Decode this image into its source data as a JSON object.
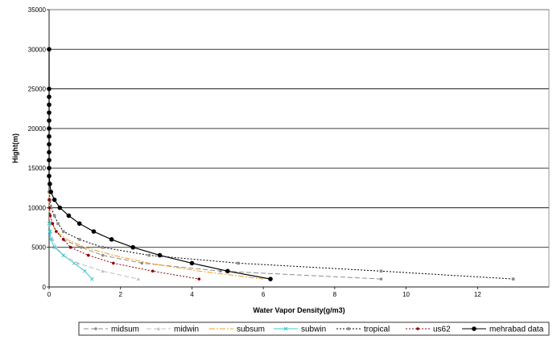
{
  "chart_data": {
    "type": "line",
    "title": "",
    "xlabel": "Water Vapor Density(g/m3)",
    "ylabel": "Hight(m)",
    "xlim": [
      0,
      14
    ],
    "ylim": [
      0,
      35000
    ],
    "xticks": [
      0,
      2,
      4,
      6,
      8,
      10,
      12
    ],
    "yticks": [
      0,
      5000,
      10000,
      15000,
      20000,
      25000,
      30000,
      35000
    ],
    "grid": "horizontal",
    "legend_position": "bottom",
    "series": [
      {
        "name": "midsum",
        "color": "#8c8c8c",
        "dash": "6,3",
        "marker": "circle",
        "points": [
          [
            0.0,
            12000
          ],
          [
            0.003,
            11000
          ],
          [
            0.01,
            10000
          ],
          [
            0.03,
            9000
          ],
          [
            0.07,
            8000
          ],
          [
            0.2,
            7000
          ],
          [
            0.4,
            6000
          ],
          [
            0.9,
            5000
          ],
          [
            1.5,
            4000
          ],
          [
            2.6,
            3000
          ],
          [
            4.8,
            2000
          ],
          [
            9.3,
            1000
          ]
        ]
      },
      {
        "name": "midwin",
        "color": "#c0c0c0",
        "dash": "6,3",
        "marker": "triangle",
        "points": [
          [
            0.0,
            10000
          ],
          [
            0.01,
            9000
          ],
          [
            0.02,
            8000
          ],
          [
            0.05,
            7000
          ],
          [
            0.1,
            6000
          ],
          [
            0.2,
            5000
          ],
          [
            0.4,
            4000
          ],
          [
            0.8,
            3000
          ],
          [
            1.5,
            2000
          ],
          [
            2.5,
            1000
          ]
        ]
      },
      {
        "name": "subsum",
        "color": "#f0a020",
        "dash": "7,2,2,2",
        "marker": "none",
        "points": [
          [
            0.0,
            12000
          ],
          [
            0.01,
            10000
          ],
          [
            0.04,
            9000
          ],
          [
            0.08,
            8000
          ],
          [
            0.2,
            7000
          ],
          [
            0.5,
            6000
          ],
          [
            1.0,
            5000
          ],
          [
            1.8,
            4000
          ],
          [
            2.8,
            3000
          ],
          [
            4.2,
            2000
          ],
          [
            6.0,
            1000
          ]
        ]
      },
      {
        "name": "subwin",
        "color": "#40c8d8",
        "dash": "",
        "marker": "cross",
        "points": [
          [
            0.0,
            8000
          ],
          [
            0.02,
            7000
          ],
          [
            0.05,
            6000
          ],
          [
            0.15,
            5000
          ],
          [
            0.4,
            4000
          ],
          [
            0.7,
            3000
          ],
          [
            1.0,
            2000
          ],
          [
            1.2,
            1000
          ]
        ]
      },
      {
        "name": "tropical",
        "color": "#000000",
        "dash": "2,2",
        "marker": "square",
        "points": [
          [
            0.0,
            12000
          ],
          [
            0.03,
            11000
          ],
          [
            0.06,
            10000
          ],
          [
            0.15,
            9000
          ],
          [
            0.25,
            8000
          ],
          [
            0.4,
            7000
          ],
          [
            0.85,
            6000
          ],
          [
            1.5,
            5000
          ],
          [
            2.8,
            4000
          ],
          [
            5.3,
            3000
          ],
          [
            9.3,
            2000
          ],
          [
            13.0,
            1000
          ]
        ]
      },
      {
        "name": "us62",
        "color": "#8b0000",
        "dash": "2,2",
        "marker": "circle",
        "points": [
          [
            0.0,
            11000
          ],
          [
            0.01,
            10000
          ],
          [
            0.03,
            9000
          ],
          [
            0.1,
            8000
          ],
          [
            0.2,
            7000
          ],
          [
            0.4,
            6000
          ],
          [
            0.6,
            5000
          ],
          [
            1.1,
            4000
          ],
          [
            1.8,
            3000
          ],
          [
            2.9,
            2000
          ],
          [
            4.2,
            1000
          ]
        ]
      },
      {
        "name": "mehrabad data",
        "color": "#000000",
        "dash": "",
        "marker": "circle-lg",
        "points": [
          [
            0.0,
            30000
          ],
          [
            0.0,
            25000
          ],
          [
            0.0,
            24000
          ],
          [
            0.0,
            23000
          ],
          [
            0.0,
            22000
          ],
          [
            0.0,
            21000
          ],
          [
            0.0,
            20000
          ],
          [
            0.0,
            19000
          ],
          [
            0.0,
            18000
          ],
          [
            0.0,
            17000
          ],
          [
            0.0,
            16000
          ],
          [
            0.0,
            15000
          ],
          [
            0.0,
            14000
          ],
          [
            0.02,
            13000
          ],
          [
            0.05,
            12000
          ],
          [
            0.15,
            11000
          ],
          [
            0.3,
            10000
          ],
          [
            0.55,
            9000
          ],
          [
            0.85,
            8000
          ],
          [
            1.25,
            7000
          ],
          [
            1.75,
            6000
          ],
          [
            2.35,
            5000
          ],
          [
            3.1,
            4000
          ],
          [
            4.0,
            3000
          ],
          [
            5.0,
            2000
          ],
          [
            6.2,
            1000
          ]
        ]
      }
    ]
  }
}
